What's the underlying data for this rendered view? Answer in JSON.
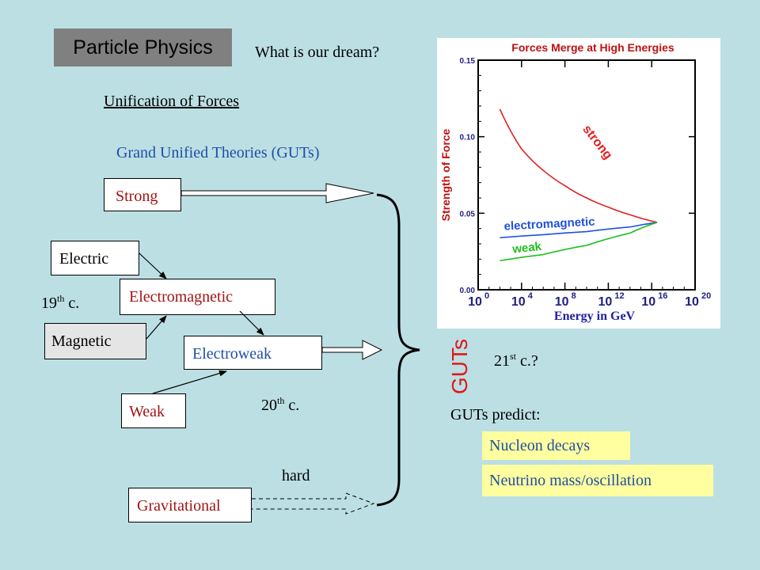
{
  "slide": {
    "title": "Particle Physics",
    "question": "What is our dream?",
    "unification": "Unification of Forces",
    "guts_heading": "Grand Unified Theories (GUTs)",
    "guts_vertical": "GUTs",
    "century_21": "21",
    "century_21_sup": "st",
    "century_21_suffix": " c.?",
    "guts_predict": "GUTs predict:",
    "predictions": [
      "Nucleon decays",
      "Neutrino mass/oscillation"
    ],
    "hard": "hard",
    "century_19": "19",
    "century_19_sup": "th",
    "century_19_suffix": " c.",
    "century_20": "20",
    "century_20_sup": "th",
    "century_20_suffix": " c."
  },
  "forces": {
    "strong": "Strong",
    "electric": "Electric",
    "magnetic": "Magnetic",
    "electromagnetic": "Electromagnetic",
    "electroweak": "Electroweak",
    "weak": "Weak",
    "gravitational": "Gravitational"
  },
  "chart_data": {
    "type": "line",
    "title": "Forces Merge at High Energies",
    "xlabel": "Energy in GeV",
    "ylabel": "Strength of Force",
    "x_scale": "log",
    "x_tick_labels": [
      {
        "base": "10",
        "exp": "0"
      },
      {
        "base": "10",
        "exp": "4"
      },
      {
        "base": "10",
        "exp": "8"
      },
      {
        "base": "10",
        "exp": "12"
      },
      {
        "base": "10",
        "exp": "16"
      },
      {
        "base": "10",
        "exp": "20"
      }
    ],
    "y_tick_labels": [
      "0.00",
      "0.05",
      "0.10",
      "0.15"
    ],
    "xlim_exp": [
      0,
      20
    ],
    "ylim": [
      0,
      0.15
    ],
    "series": [
      {
        "name": "strong",
        "color": "#e02020",
        "x_exp": [
          2,
          4,
          6,
          8,
          10,
          12,
          14,
          16.5
        ],
        "y": [
          0.118,
          0.092,
          0.078,
          0.068,
          0.06,
          0.054,
          0.049,
          0.044
        ]
      },
      {
        "name": "electromagnetic",
        "color": "#2050e0",
        "x_exp": [
          2,
          6,
          10,
          14,
          16.5
        ],
        "y": [
          0.034,
          0.036,
          0.038,
          0.041,
          0.044
        ]
      },
      {
        "name": "weak",
        "color": "#20c020",
        "x_exp": [
          2,
          6,
          10,
          14,
          16.5
        ],
        "y": [
          0.019,
          0.023,
          0.029,
          0.037,
          0.044
        ]
      }
    ],
    "annotations": [
      "strong",
      "electromagnetic",
      "weak"
    ]
  },
  "colors": {
    "background": "#bcdfe4",
    "title_box": "#808080",
    "red_text": "#a01414",
    "blue_text": "#1f4fa3",
    "guts_red": "#e01818",
    "prediction_bg": "#ffffa0"
  }
}
